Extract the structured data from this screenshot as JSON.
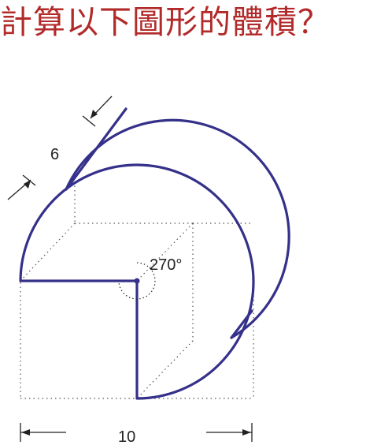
{
  "title": "計算以下圖形的體積？",
  "labels": {
    "slant": "6",
    "angle": "270°",
    "width": "10"
  },
  "colors": {
    "title": "#b22a2a",
    "outline": "#353089",
    "guide": "#555555",
    "dimension": "#222222"
  }
}
